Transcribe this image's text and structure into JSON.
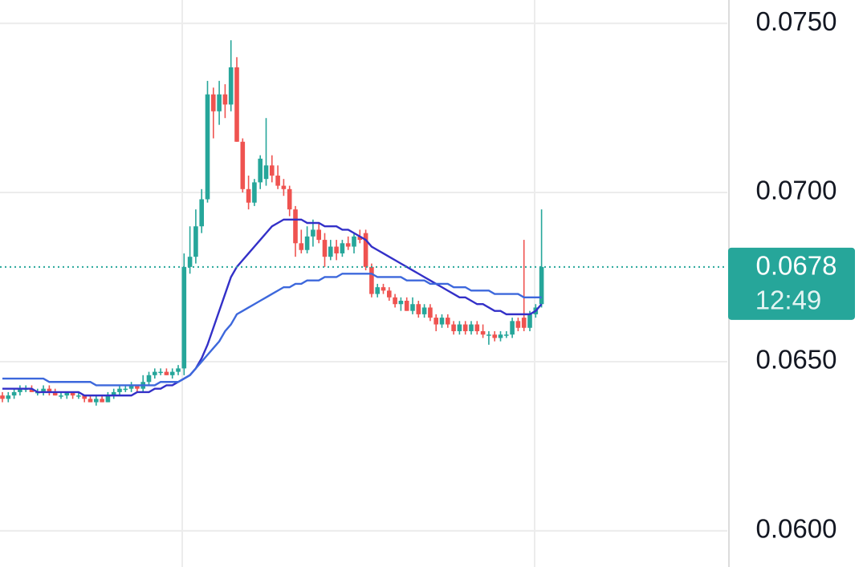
{
  "chart_data": {
    "type": "candlestick",
    "open": [
      0.064,
      0.0639,
      0.064,
      0.0641,
      0.0642,
      0.0642,
      0.0641,
      0.0641,
      0.0642,
      0.0641,
      0.064,
      0.064,
      0.0641,
      0.064,
      0.064,
      0.0639,
      0.0638,
      0.0639,
      0.0638,
      0.064,
      0.0641,
      0.0642,
      0.0642,
      0.0643,
      0.0642,
      0.0644,
      0.0646,
      0.0647,
      0.0647,
      0.0646,
      0.0647,
      0.0648,
      0.0678,
      0.0681,
      0.069,
      0.0698,
      0.0729,
      0.0724,
      0.0729,
      0.0726,
      0.0737,
      0.0715,
      0.0701,
      0.0697,
      0.0703,
      0.0704,
      0.0708,
      0.0705,
      0.0702,
      0.0701,
      0.0695,
      0.0685,
      0.0683,
      0.0687,
      0.0689,
      0.0686,
      0.0681,
      0.0684,
      0.0682,
      0.0685,
      0.0684,
      0.0687,
      0.0688,
      0.0678,
      0.067,
      0.0672,
      0.0671,
      0.0669,
      0.0667,
      0.0668,
      0.0665,
      0.0667,
      0.0664,
      0.0666,
      0.0663,
      0.0661,
      0.0663,
      0.0661,
      0.0659,
      0.0661,
      0.0659,
      0.0661,
      0.0659,
      0.0658,
      0.0658,
      0.0657,
      0.0658,
      0.0658,
      0.0662,
      0.0663,
      0.066,
      0.0664,
      0.0667
    ],
    "high": [
      0.0641,
      0.0641,
      0.0642,
      0.0643,
      0.0643,
      0.0643,
      0.0642,
      0.0643,
      0.0643,
      0.0642,
      0.0641,
      0.0641,
      0.0641,
      0.0641,
      0.064,
      0.064,
      0.064,
      0.064,
      0.0641,
      0.0642,
      0.0643,
      0.0643,
      0.0644,
      0.0643,
      0.0646,
      0.0647,
      0.0648,
      0.0648,
      0.0648,
      0.0648,
      0.0649,
      0.0682,
      0.069,
      0.0695,
      0.0701,
      0.0733,
      0.0731,
      0.0733,
      0.0732,
      0.0745,
      0.074,
      0.0716,
      0.0705,
      0.0704,
      0.0711,
      0.0722,
      0.0711,
      0.0708,
      0.0704,
      0.0702,
      0.0696,
      0.0689,
      0.069,
      0.0692,
      0.0691,
      0.0688,
      0.0686,
      0.0686,
      0.0686,
      0.0687,
      0.0688,
      0.0689,
      0.0689,
      0.0679,
      0.0673,
      0.0673,
      0.0672,
      0.067,
      0.0669,
      0.0669,
      0.0669,
      0.0668,
      0.0667,
      0.0667,
      0.0664,
      0.0664,
      0.0664,
      0.0662,
      0.0662,
      0.0662,
      0.0662,
      0.0662,
      0.0661,
      0.0659,
      0.0659,
      0.0659,
      0.0659,
      0.0663,
      0.0663,
      0.0686,
      0.0665,
      0.0667,
      0.0695
    ],
    "low": [
      0.0638,
      0.0638,
      0.0639,
      0.064,
      0.0641,
      0.0641,
      0.064,
      0.064,
      0.064,
      0.064,
      0.0639,
      0.0639,
      0.0639,
      0.0639,
      0.0638,
      0.0638,
      0.0637,
      0.0638,
      0.0638,
      0.0639,
      0.064,
      0.0641,
      0.0641,
      0.0641,
      0.0641,
      0.0643,
      0.0645,
      0.0646,
      0.0646,
      0.0645,
      0.0646,
      0.0646,
      0.0676,
      0.0679,
      0.0688,
      0.0697,
      0.0716,
      0.072,
      0.0722,
      0.0724,
      0.0715,
      0.07,
      0.0695,
      0.0696,
      0.0701,
      0.0702,
      0.0703,
      0.0701,
      0.0699,
      0.0693,
      0.0681,
      0.0682,
      0.0682,
      0.0684,
      0.0685,
      0.0678,
      0.068,
      0.068,
      0.0681,
      0.0683,
      0.0682,
      0.0685,
      0.0677,
      0.0669,
      0.0669,
      0.067,
      0.0668,
      0.0666,
      0.0665,
      0.0665,
      0.0664,
      0.0663,
      0.0663,
      0.0662,
      0.0659,
      0.066,
      0.066,
      0.0658,
      0.0658,
      0.0658,
      0.0658,
      0.0658,
      0.0657,
      0.0655,
      0.0656,
      0.0656,
      0.0657,
      0.0657,
      0.0659,
      0.0659,
      0.0659,
      0.0663,
      0.0666
    ],
    "close": [
      0.0639,
      0.064,
      0.0641,
      0.0642,
      0.0642,
      0.0641,
      0.0641,
      0.0642,
      0.0641,
      0.064,
      0.064,
      0.0641,
      0.064,
      0.064,
      0.0639,
      0.0638,
      0.0639,
      0.0638,
      0.064,
      0.0641,
      0.0642,
      0.0642,
      0.0643,
      0.0642,
      0.0644,
      0.0646,
      0.0647,
      0.0647,
      0.0646,
      0.0647,
      0.0648,
      0.0678,
      0.0681,
      0.069,
      0.0698,
      0.0729,
      0.0724,
      0.0729,
      0.0726,
      0.0737,
      0.0715,
      0.0701,
      0.0697,
      0.0703,
      0.071,
      0.0708,
      0.0705,
      0.0702,
      0.0701,
      0.0695,
      0.0685,
      0.0683,
      0.0687,
      0.0689,
      0.0686,
      0.0681,
      0.0684,
      0.0682,
      0.0685,
      0.0684,
      0.0687,
      0.0686,
      0.0678,
      0.067,
      0.0672,
      0.0671,
      0.0669,
      0.0667,
      0.0668,
      0.0665,
      0.0667,
      0.0664,
      0.0666,
      0.0663,
      0.0661,
      0.0663,
      0.0661,
      0.0659,
      0.0661,
      0.0659,
      0.0661,
      0.0659,
      0.0658,
      0.0658,
      0.0657,
      0.0658,
      0.0658,
      0.0662,
      0.066,
      0.066,
      0.0664,
      0.0666,
      0.0678
    ],
    "up_color": "#26a69a",
    "down_color": "#ef5350",
    "moving_averages": [
      {
        "color": "#3330c8",
        "values": [
          0.0642,
          0.0642,
          0.0642,
          0.0642,
          0.0642,
          0.0642,
          0.0641,
          0.0641,
          0.0641,
          0.0641,
          0.0641,
          0.0641,
          0.0641,
          0.0641,
          0.064,
          0.064,
          0.064,
          0.064,
          0.064,
          0.064,
          0.064,
          0.064,
          0.064,
          0.0641,
          0.0641,
          0.0641,
          0.0642,
          0.0642,
          0.0643,
          0.0643,
          0.0644,
          0.0645,
          0.0646,
          0.0648,
          0.0651,
          0.0655,
          0.066,
          0.0665,
          0.067,
          0.0675,
          0.0678,
          0.068,
          0.0682,
          0.0684,
          0.0686,
          0.0688,
          0.069,
          0.0691,
          0.0692,
          0.0692,
          0.0692,
          0.0692,
          0.0691,
          0.0691,
          0.0691,
          0.069,
          0.069,
          0.069,
          0.0689,
          0.0689,
          0.0688,
          0.0687,
          0.0686,
          0.0684,
          0.0683,
          0.0682,
          0.0681,
          0.068,
          0.0679,
          0.0678,
          0.0677,
          0.0676,
          0.0675,
          0.0674,
          0.0673,
          0.0672,
          0.0671,
          0.067,
          0.0669,
          0.0669,
          0.0668,
          0.0667,
          0.0667,
          0.0666,
          0.0665,
          0.0665,
          0.0664,
          0.0664,
          0.0664,
          0.0664,
          0.0664,
          0.0665,
          0.0667
        ]
      },
      {
        "color": "#3d68dc",
        "values": [
          0.0645,
          0.0645,
          0.0645,
          0.0645,
          0.0645,
          0.0645,
          0.0645,
          0.0645,
          0.0644,
          0.0644,
          0.0644,
          0.0644,
          0.0644,
          0.0644,
          0.0644,
          0.0644,
          0.0643,
          0.0643,
          0.0643,
          0.0643,
          0.0643,
          0.0643,
          0.0643,
          0.0643,
          0.0643,
          0.0643,
          0.0643,
          0.0644,
          0.0644,
          0.0644,
          0.0644,
          0.0645,
          0.0646,
          0.0648,
          0.065,
          0.0652,
          0.0654,
          0.0656,
          0.0659,
          0.0661,
          0.0664,
          0.0665,
          0.0666,
          0.0667,
          0.0668,
          0.0669,
          0.067,
          0.0671,
          0.0672,
          0.0672,
          0.0673,
          0.0673,
          0.0674,
          0.0674,
          0.0674,
          0.0675,
          0.0675,
          0.0675,
          0.0676,
          0.0676,
          0.0676,
          0.0676,
          0.0676,
          0.0676,
          0.0675,
          0.0675,
          0.0675,
          0.0675,
          0.0675,
          0.0674,
          0.0674,
          0.0674,
          0.0674,
          0.0673,
          0.0673,
          0.0673,
          0.0673,
          0.0672,
          0.0672,
          0.0672,
          0.0671,
          0.0671,
          0.0671,
          0.0671,
          0.067,
          0.067,
          0.067,
          0.067,
          0.067,
          0.0669,
          0.0669,
          0.0669,
          0.0669
        ]
      }
    ],
    "ylim": [
      0.05893,
      0.07569
    ],
    "yticks": [
      {
        "value": 0.075,
        "label": "0.0750"
      },
      {
        "value": 0.07,
        "label": "0.0700"
      },
      {
        "value": 0.065,
        "label": "0.0650"
      },
      {
        "value": 0.06,
        "label": "0.0600"
      }
    ],
    "grid": true,
    "last_price": 0.0678,
    "countdown": "12:49"
  }
}
